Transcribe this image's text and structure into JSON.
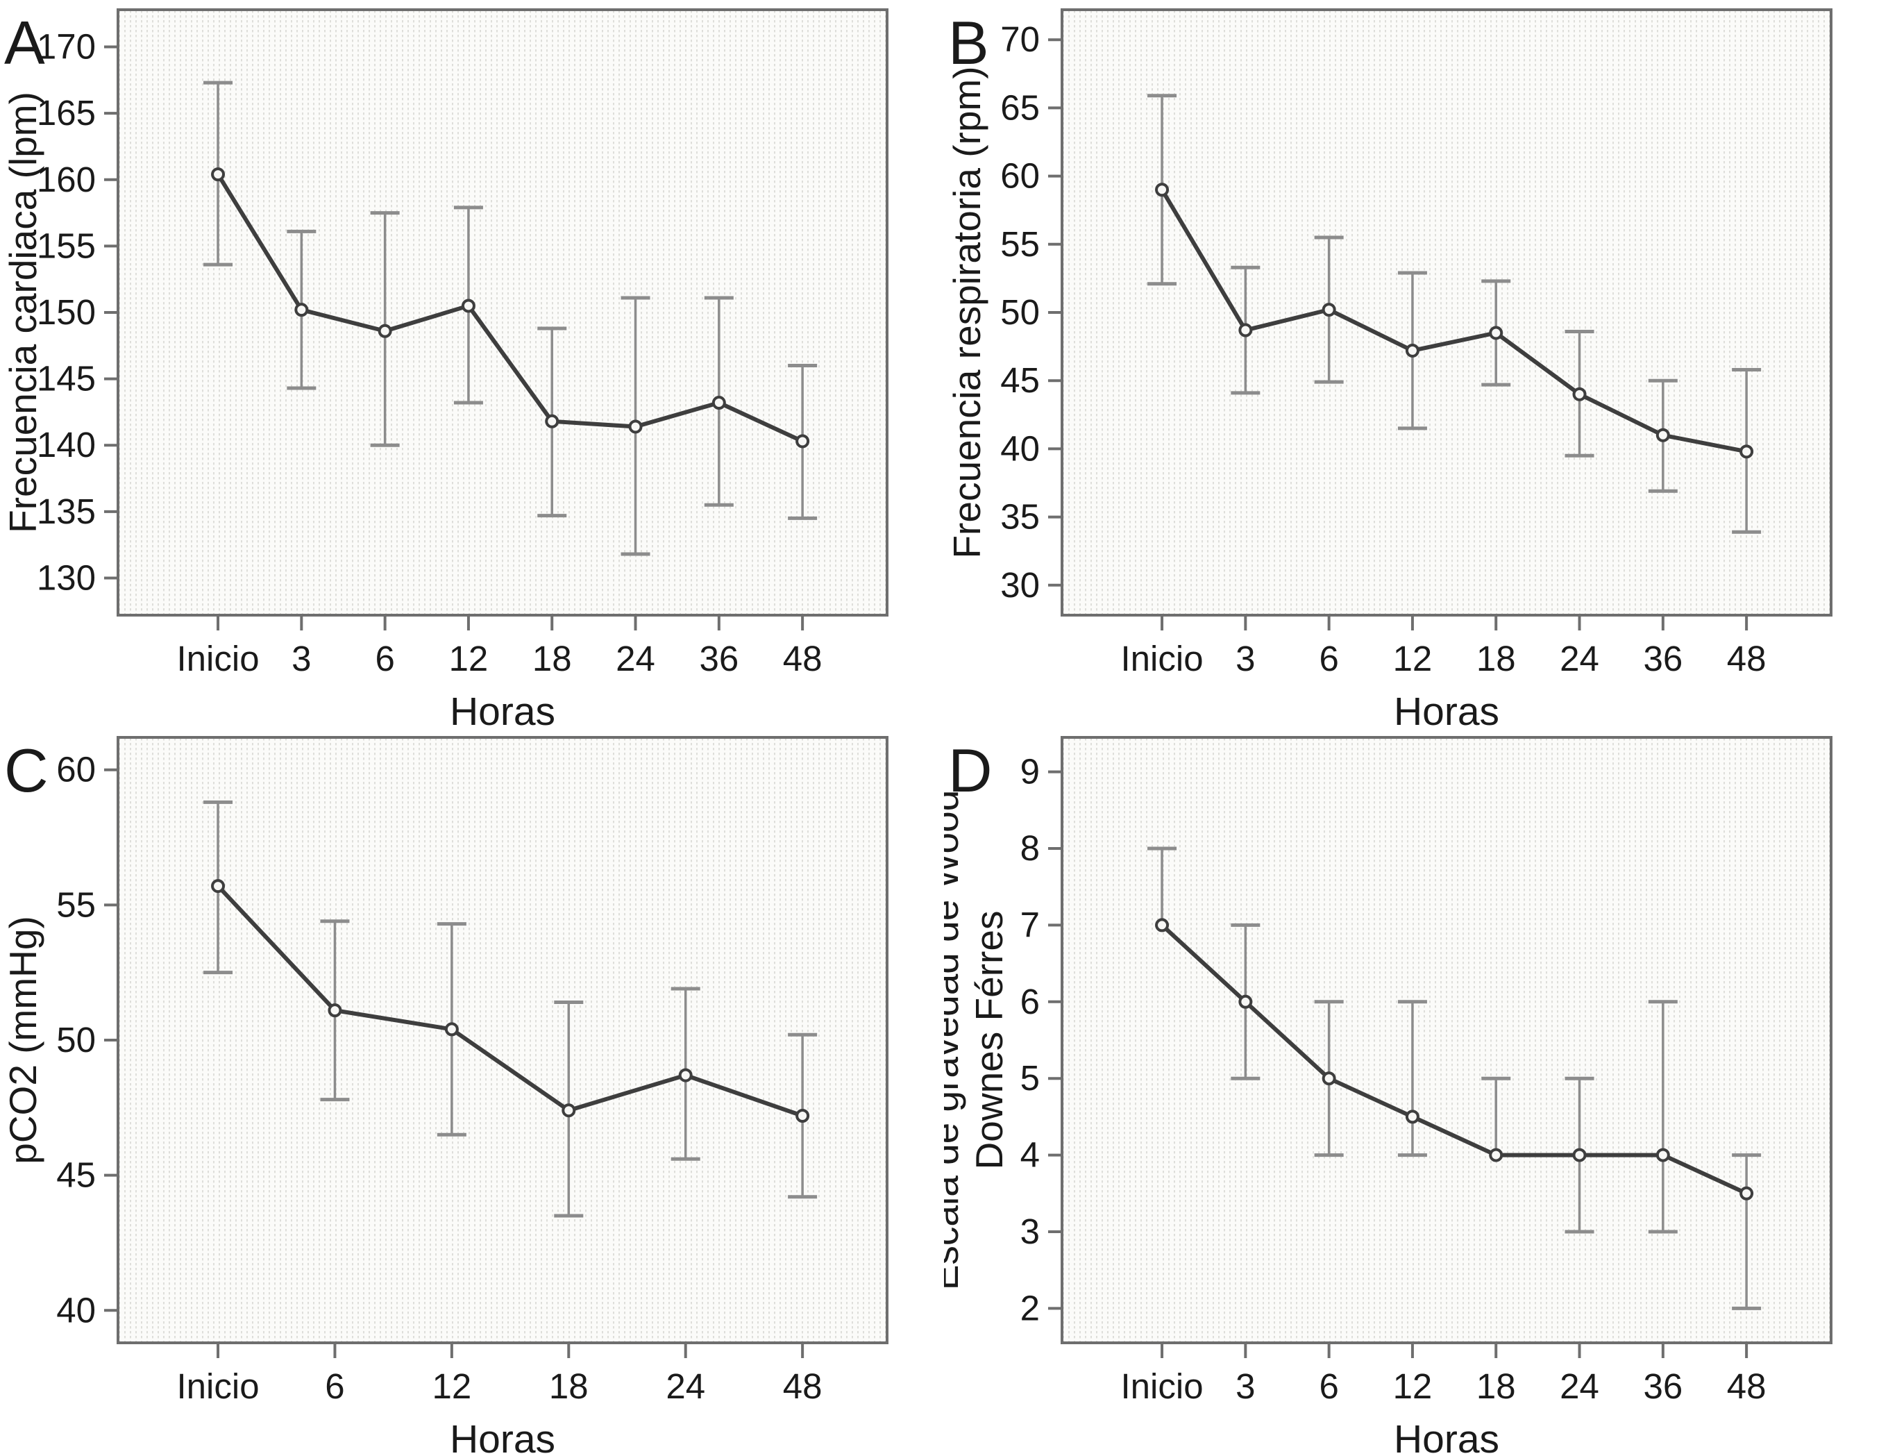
{
  "figure": {
    "xlabel": "Horas",
    "background": "#ffffff"
  },
  "colors": {
    "line": "#3e3e3e",
    "marker_fill": "#f7f7f5",
    "error_bar": "#8c8c8c",
    "frame": "#6e6e6e",
    "tick": "#6e6e6e",
    "text": "#1a1a1a",
    "plot_bg": "#fbfbf9",
    "plot_stripe": "#dededa"
  },
  "chart_data": [
    {
      "panel": "A",
      "type": "line",
      "ylabel_lines": [
        "Frecuencia cardiaca (lpm)"
      ],
      "xlabel": "Horas",
      "categories": [
        "Inicio",
        "3",
        "6",
        "12",
        "18",
        "24",
        "36",
        "48"
      ],
      "values": [
        160.4,
        150.2,
        148.6,
        150.5,
        141.8,
        141.4,
        143.2,
        140.3
      ],
      "err_high": [
        167.3,
        156.1,
        157.5,
        157.9,
        148.8,
        151.1,
        151.1,
        146.0
      ],
      "err_low": [
        153.6,
        144.3,
        140.0,
        143.2,
        134.7,
        131.8,
        135.5,
        134.5
      ],
      "yticks": [
        130,
        135,
        140,
        145,
        150,
        155,
        160,
        165,
        170
      ],
      "ylim": [
        127.2,
        172.8
      ],
      "grid": "vertical-stripes",
      "legend": "none"
    },
    {
      "panel": "B",
      "type": "line",
      "ylabel_lines": [
        "Frecuencia respiratoria (rpm)"
      ],
      "xlabel": "Horas",
      "categories": [
        "Inicio",
        "3",
        "6",
        "12",
        "18",
        "24",
        "36",
        "48"
      ],
      "values": [
        59.0,
        48.7,
        50.2,
        47.2,
        48.5,
        44.0,
        41.0,
        39.8
      ],
      "err_high": [
        65.9,
        53.3,
        55.5,
        52.9,
        52.3,
        48.6,
        45.0,
        45.8
      ],
      "err_low": [
        52.1,
        44.1,
        44.9,
        41.5,
        44.7,
        39.5,
        36.9,
        33.9
      ],
      "yticks": [
        30,
        35,
        40,
        45,
        50,
        55,
        60,
        65,
        70
      ],
      "ylim": [
        27.8,
        72.2
      ],
      "grid": "vertical-stripes",
      "legend": "none"
    },
    {
      "panel": "C",
      "type": "line",
      "ylabel_lines": [
        "pCO2 (mmHg)"
      ],
      "xlabel": "Horas",
      "categories": [
        "Inicio",
        "6",
        "12",
        "18",
        "24",
        "48"
      ],
      "values": [
        55.7,
        51.1,
        50.4,
        47.4,
        48.7,
        47.2
      ],
      "err_high": [
        58.8,
        54.4,
        54.3,
        51.4,
        51.9,
        50.2
      ],
      "err_low": [
        52.5,
        47.8,
        46.5,
        43.5,
        45.6,
        44.2
      ],
      "yticks": [
        40,
        45,
        50,
        55,
        60
      ],
      "ylim": [
        38.8,
        61.2
      ],
      "grid": "vertical-stripes",
      "legend": "none"
    },
    {
      "panel": "D",
      "type": "line",
      "ylabel_lines": [
        "Escala de gravedad de Wood",
        "Downes Férres"
      ],
      "xlabel": "Horas",
      "categories": [
        "Inicio",
        "3",
        "6",
        "12",
        "18",
        "24",
        "36",
        "48"
      ],
      "values": [
        7.0,
        6.0,
        5.0,
        4.5,
        4.0,
        4.0,
        4.0,
        3.5
      ],
      "err_high": [
        8.0,
        7.0,
        6.0,
        6.0,
        5.0,
        5.0,
        6.0,
        4.0
      ],
      "err_low": [
        7.0,
        5.0,
        4.0,
        4.0,
        4.0,
        3.0,
        3.0,
        2.0
      ],
      "yticks": [
        2,
        3,
        4,
        5,
        6,
        7,
        8,
        9
      ],
      "ylim": [
        1.55,
        9.45
      ],
      "grid": "vertical-stripes",
      "legend": "none"
    }
  ]
}
